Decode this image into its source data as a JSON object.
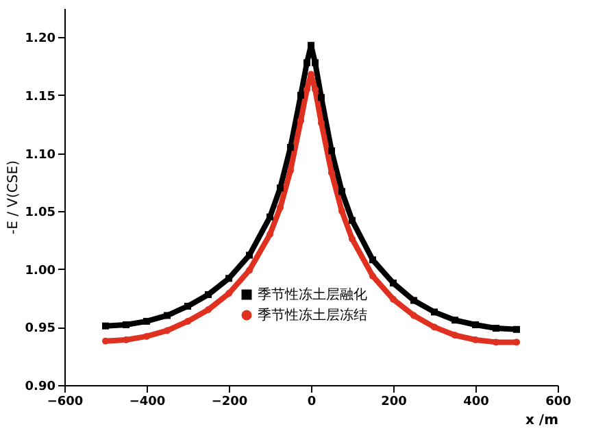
{
  "chart_data": {
    "type": "line",
    "xlabel": "x /m",
    "ylabel": "-E / V(CSE)",
    "xlim": [
      -600,
      600
    ],
    "xticks": [
      -600,
      -400,
      -200,
      0,
      200,
      400,
      600
    ],
    "ylim": [
      0.9,
      1.225
    ],
    "yticks": [
      {
        "value": 0.9,
        "label": "0.90"
      },
      0.95,
      {
        "value": 1.0,
        "label": "1.00"
      },
      1.05,
      {
        "value": 1.1,
        "label": "1.10"
      },
      1.15,
      {
        "value": 1.2,
        "label": "1.20"
      }
    ],
    "grid": false,
    "legend": "bottom",
    "line_style": "solid",
    "series": [
      {
        "name": "季节性冻土层融化",
        "color": "#000000",
        "marker": "square",
        "x": [
          -500,
          -450,
          -400,
          -350,
          -300,
          -250,
          -200,
          -150,
          -100,
          -75,
          -50,
          -25,
          -10,
          0,
          10,
          25,
          50,
          75,
          100,
          150,
          200,
          250,
          300,
          350,
          400,
          450,
          500
        ],
        "values": [
          0.951,
          0.952,
          0.955,
          0.96,
          0.968,
          0.978,
          0.992,
          1.012,
          1.045,
          1.07,
          1.105,
          1.15,
          1.178,
          1.193,
          1.178,
          1.148,
          1.102,
          1.067,
          1.042,
          1.008,
          0.988,
          0.973,
          0.963,
          0.956,
          0.952,
          0.949,
          0.948
        ]
      },
      {
        "name": "季节性冻土层冻结",
        "color": "#e03020",
        "marker": "circle",
        "x": [
          -500,
          -450,
          -400,
          -350,
          -300,
          -250,
          -200,
          -150,
          -100,
          -75,
          -50,
          -25,
          -10,
          0,
          10,
          25,
          50,
          75,
          100,
          150,
          200,
          250,
          300,
          350,
          400,
          450,
          500
        ],
        "values": [
          0.938,
          0.939,
          0.942,
          0.947,
          0.955,
          0.965,
          0.979,
          0.999,
          1.03,
          1.053,
          1.085,
          1.128,
          1.155,
          1.168,
          1.155,
          1.126,
          1.083,
          1.05,
          1.026,
          0.994,
          0.974,
          0.96,
          0.95,
          0.943,
          0.939,
          0.937,
          0.937
        ]
      }
    ]
  }
}
